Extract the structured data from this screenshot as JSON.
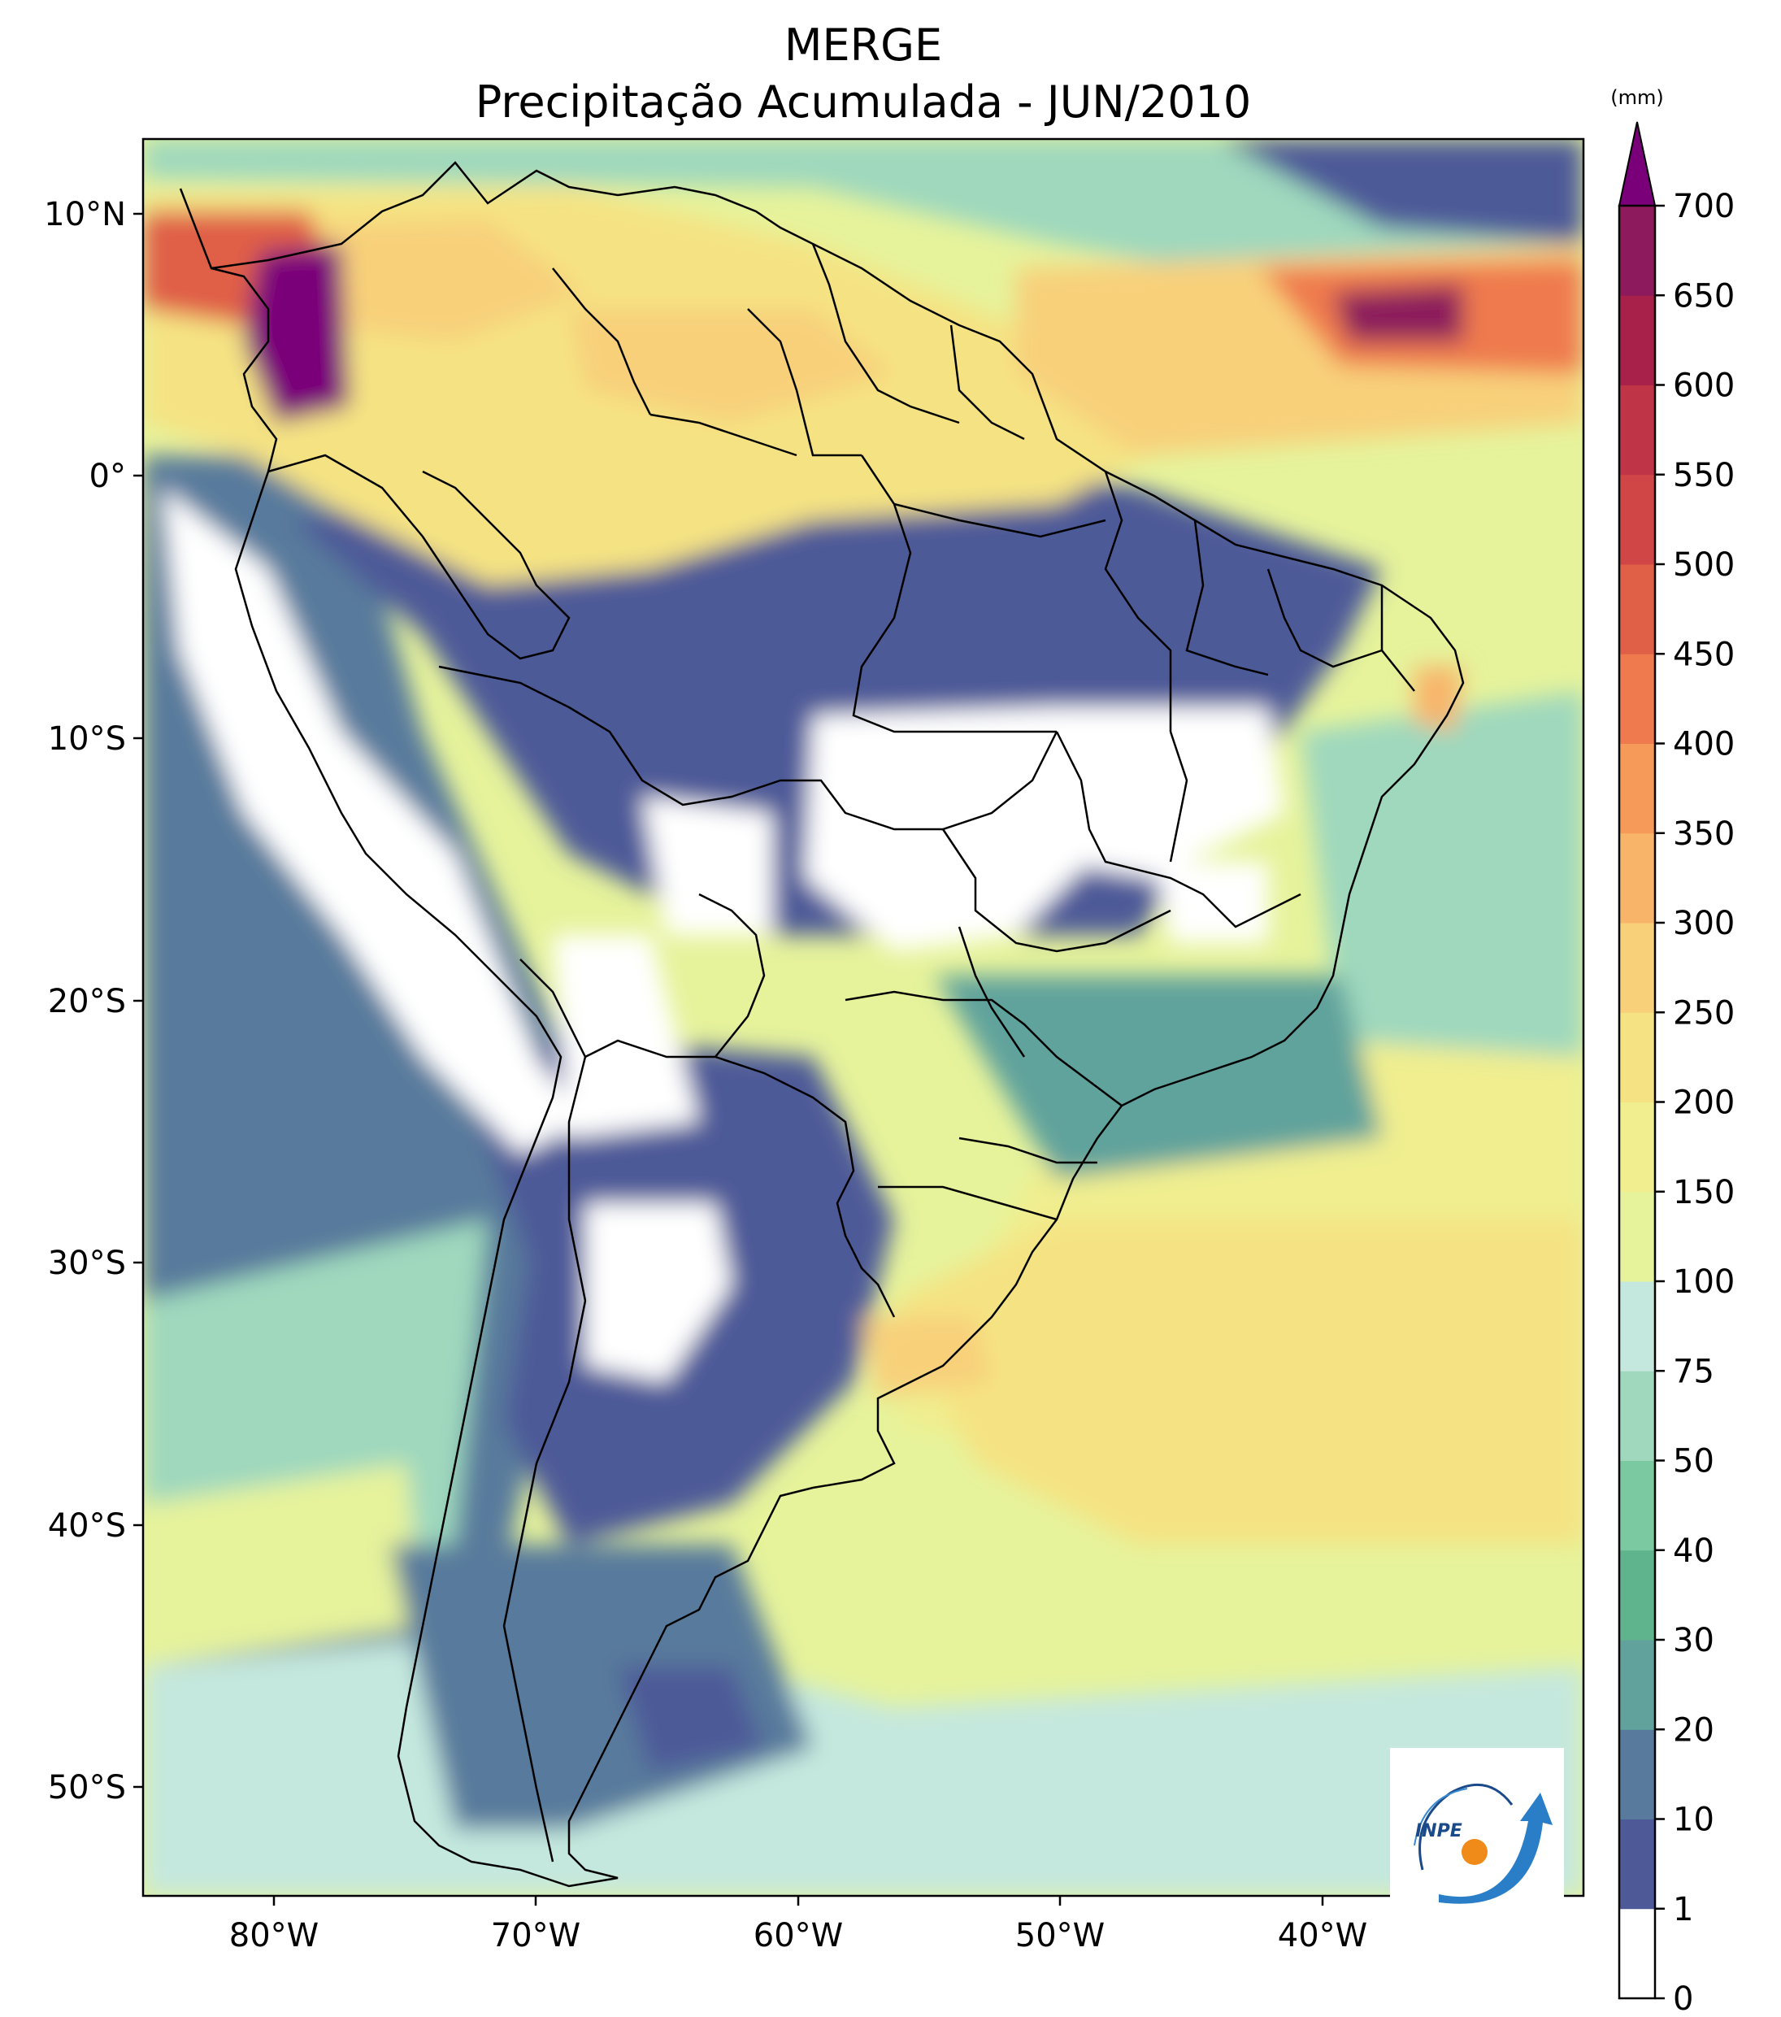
{
  "title": "MERGE",
  "subtitle": "Precipitação Acumulada - JUN/2010",
  "colorbar": {
    "unit": "(mm)",
    "levels": [
      "0",
      "1",
      "10",
      "20",
      "30",
      "40",
      "50",
      "75",
      "100",
      "150",
      "200",
      "250",
      "300",
      "350",
      "400",
      "450",
      "500",
      "550",
      "600",
      "650",
      "700"
    ],
    "colors": [
      "#ffffff",
      "#4e5a98",
      "#587a9c",
      "#61a39c",
      "#5fb48e",
      "#7ac9a0",
      "#9fd8bd",
      "#c5e8de",
      "#e6f39b",
      "#f0ee8f",
      "#f5e383",
      "#f8d07a",
      "#f8b56a",
      "#f69a5a",
      "#ef7a4d",
      "#e05f47",
      "#d04646",
      "#bf3447",
      "#a8214a",
      "#8c1a5c"
    ],
    "extend_color": "#7a007a"
  },
  "lat_labels": [
    "10°N",
    "0°",
    "10°S",
    "20°S",
    "30°S",
    "40°S",
    "50°S"
  ],
  "lon_labels": [
    "80°W",
    "70°W",
    "60°W",
    "50°W",
    "40°W"
  ],
  "logo": {
    "text": "INPE"
  }
}
